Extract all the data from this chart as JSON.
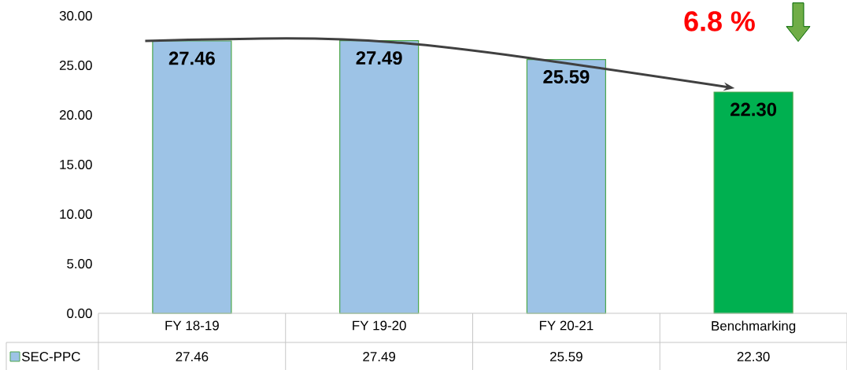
{
  "chart_data": {
    "type": "bar",
    "categories": [
      "FY 18-19",
      "FY 19-20",
      "FY 20-21",
      "Benchmarking"
    ],
    "series": [
      {
        "name": "SEC-PPC",
        "values": [
          27.46,
          27.49,
          25.59,
          22.3
        ],
        "colors": [
          "#9dc3e6",
          "#9dc3e6",
          "#9dc3e6",
          "#00b050"
        ],
        "value_labels": [
          "27.46",
          "27.49",
          "25.59",
          "22.30"
        ]
      }
    ],
    "ylim": [
      0,
      30
    ],
    "yticks": [
      {
        "value": 0,
        "label": "0.00"
      },
      {
        "value": 5,
        "label": "5.00"
      },
      {
        "value": 10,
        "label": "10.00"
      },
      {
        "value": 15,
        "label": "15.00"
      },
      {
        "value": 20,
        "label": "20.00"
      },
      {
        "value": 25,
        "label": "25.00"
      },
      {
        "value": 30,
        "label": "30.00"
      }
    ],
    "annotations": [
      "6.8 %"
    ],
    "grid": false,
    "legend": "bottom"
  }
}
